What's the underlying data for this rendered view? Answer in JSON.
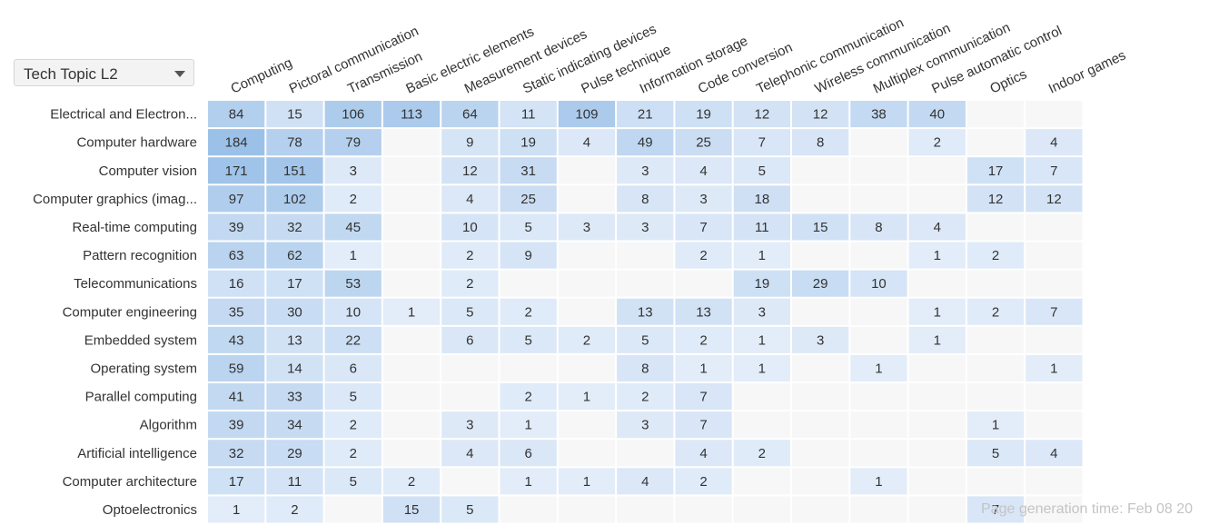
{
  "dropdown": {
    "selected": "Tech Topic L2"
  },
  "footer": {
    "generation_text": "Page generation time: Feb 08 20"
  },
  "colors": {
    "empty_cell": "#f7f7f7",
    "low": "#eaf1fb",
    "high": "#9cc1e8",
    "text": "#333333"
  },
  "chart_data": {
    "type": "heatmap",
    "columns": [
      "Computing",
      "Pictoral communication",
      "Transmission",
      "Basic electric elements",
      "Measurement devices",
      "Static indicating devices",
      "Pulse technique",
      "Information storage",
      "Code conversion",
      "Telephonic communication",
      "Wireless communication",
      "Multiplex communication",
      "Pulse automatic control",
      "Optics",
      "Indoor games"
    ],
    "rows": [
      "Electrical and Electron...",
      "Computer hardware",
      "Computer vision",
      "Computer graphics (imag...",
      "Real-time computing",
      "Pattern recognition",
      "Telecommunications",
      "Computer engineering",
      "Embedded system",
      "Operating system",
      "Parallel computing",
      "Algorithm",
      "Artificial intelligence",
      "Computer architecture",
      "Optoelectronics"
    ],
    "values": [
      [
        84,
        15,
        106,
        113,
        64,
        11,
        109,
        21,
        19,
        12,
        12,
        38,
        40,
        null,
        null
      ],
      [
        184,
        78,
        79,
        null,
        9,
        19,
        4,
        49,
        25,
        7,
        8,
        null,
        2,
        null,
        4
      ],
      [
        171,
        151,
        3,
        null,
        12,
        31,
        null,
        3,
        4,
        5,
        null,
        null,
        null,
        17,
        7
      ],
      [
        97,
        102,
        2,
        null,
        4,
        25,
        null,
        8,
        3,
        18,
        null,
        null,
        null,
        12,
        12
      ],
      [
        39,
        32,
        45,
        null,
        10,
        5,
        3,
        3,
        7,
        11,
        15,
        8,
        4,
        null,
        null
      ],
      [
        63,
        62,
        1,
        null,
        2,
        9,
        null,
        null,
        2,
        1,
        null,
        null,
        1,
        2,
        null
      ],
      [
        16,
        17,
        53,
        null,
        2,
        null,
        null,
        null,
        null,
        19,
        29,
        10,
        null,
        null,
        null
      ],
      [
        35,
        30,
        10,
        1,
        5,
        2,
        null,
        13,
        13,
        3,
        null,
        null,
        1,
        2,
        7
      ],
      [
        43,
        13,
        22,
        null,
        6,
        5,
        2,
        5,
        2,
        1,
        3,
        null,
        1,
        null,
        null
      ],
      [
        59,
        14,
        6,
        null,
        null,
        null,
        null,
        8,
        1,
        1,
        null,
        1,
        null,
        null,
        1
      ],
      [
        41,
        33,
        5,
        null,
        null,
        2,
        1,
        2,
        7,
        null,
        null,
        null,
        null,
        null,
        null
      ],
      [
        39,
        34,
        2,
        null,
        3,
        1,
        null,
        3,
        7,
        null,
        null,
        null,
        null,
        1,
        null
      ],
      [
        32,
        29,
        2,
        null,
        4,
        6,
        null,
        null,
        4,
        2,
        null,
        null,
        null,
        5,
        4
      ],
      [
        17,
        11,
        5,
        2,
        null,
        1,
        1,
        4,
        2,
        null,
        null,
        1,
        null,
        null,
        null
      ],
      [
        1,
        2,
        null,
        15,
        5,
        null,
        null,
        null,
        null,
        null,
        null,
        null,
        null,
        7,
        null
      ]
    ]
  }
}
